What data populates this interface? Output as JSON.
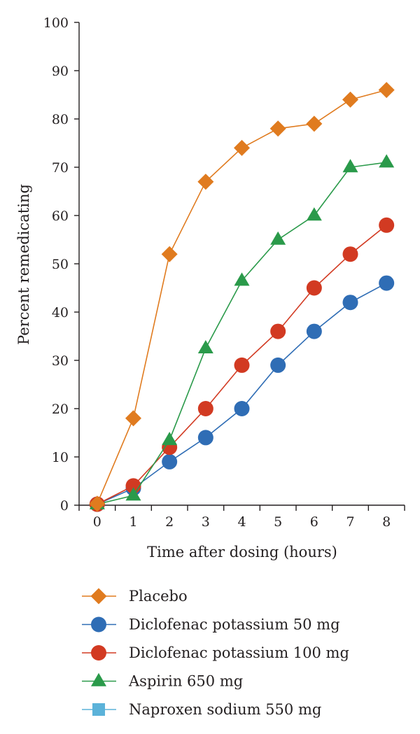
{
  "chart_data": {
    "type": "line",
    "title": "",
    "xlabel": "Time after dosing (hours)",
    "ylabel": "Percent remedicating",
    "xlim": [
      -0.5,
      8.5
    ],
    "ylim": [
      0,
      100
    ],
    "x_ticks": [
      "0",
      "1",
      "2",
      "3",
      "4",
      "5",
      "6",
      "7",
      "8"
    ],
    "y_ticks": [
      "0",
      "10",
      "20",
      "30",
      "40",
      "50",
      "60",
      "70",
      "80",
      "90",
      "100"
    ],
    "grid": false,
    "legend_position": "bottom",
    "series": [
      {
        "name": "Placebo",
        "color": "#e07b1f",
        "marker": "diamond",
        "x": [
          0,
          1,
          2,
          3,
          4,
          5,
          6,
          7,
          8
        ],
        "y": [
          0.3,
          18,
          52,
          67,
          74,
          78,
          79,
          84,
          86
        ]
      },
      {
        "name": "Diclofenac potassium 50 mg",
        "color": "#2f6db5",
        "marker": "circle",
        "x": [
          0,
          1,
          2,
          3,
          4,
          5,
          6,
          7,
          8
        ],
        "y": [
          0.2,
          3.5,
          9,
          14,
          20,
          29,
          36,
          42,
          46
        ]
      },
      {
        "name": "Diclofenac potassium 100 mg",
        "color": "#d23a22",
        "marker": "circle",
        "x": [
          0,
          1,
          2,
          3,
          4,
          5,
          6,
          7,
          8
        ],
        "y": [
          0.2,
          4,
          12,
          20,
          29,
          36,
          45,
          52,
          58
        ]
      },
      {
        "name": "Aspirin 650 mg",
        "color": "#2a9a4a",
        "marker": "triangle",
        "x": [
          0,
          1,
          2,
          3,
          4,
          5,
          6,
          7,
          8
        ],
        "y": [
          0.2,
          2,
          13.5,
          32.5,
          46.5,
          55,
          60,
          70,
          71
        ]
      },
      {
        "name": "Naproxen sodium 550 mg",
        "color": "#5bb2d9",
        "marker": "square",
        "x": [],
        "y": []
      }
    ]
  }
}
